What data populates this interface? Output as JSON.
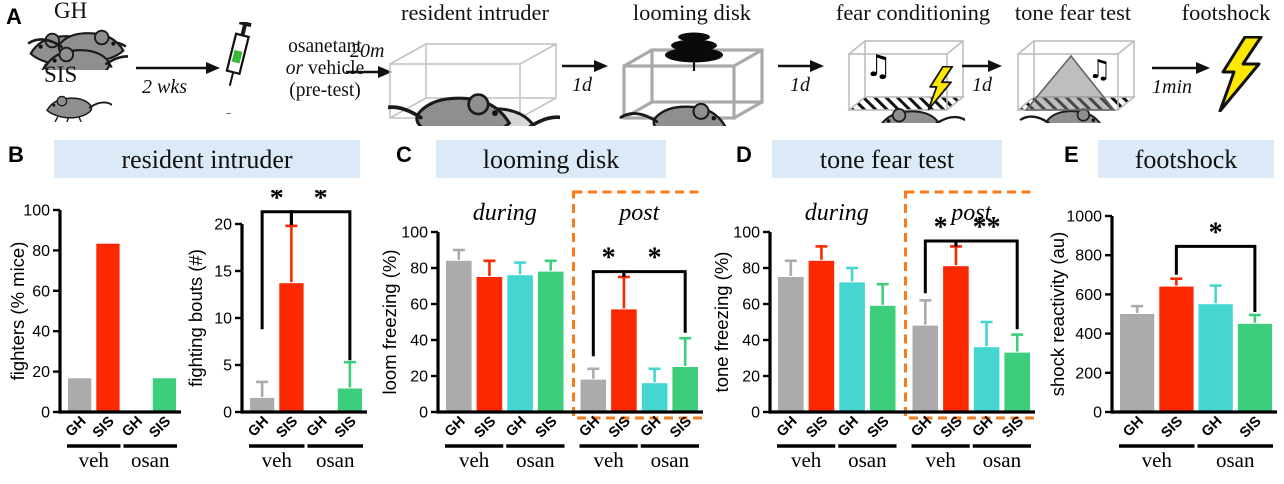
{
  "panel_a": {
    "label": "A",
    "gh": "GH",
    "sis": "SIS",
    "t_2wks": "2 wks",
    "t_20m": "20m",
    "t_1d": "1d",
    "t_1min": "1min",
    "inj1": "osanetant",
    "inj_or": "or",
    "inj2": " vehicle",
    "inj3": "(pre-test)",
    "s1": "resident intruder",
    "s2": "looming disk",
    "s3": "fear conditioning",
    "s4": "tone fear test",
    "s5": "footshock"
  },
  "panels": {
    "b": {
      "label": "B",
      "title": "resident intruder"
    },
    "c": {
      "label": "C",
      "title": "looming disk"
    },
    "d": {
      "label": "D",
      "title": "tone fear test"
    },
    "e": {
      "label": "E",
      "title": "footshock"
    }
  },
  "colors": {
    "gray": "#ABABAB",
    "red": "#FB2800",
    "cyan": "#45D6D2",
    "green": "#3DCE7D",
    "orange_dash": "#F97C1C",
    "header_bg": "#DCE9F6",
    "axis": "#000000"
  },
  "chart_data": [
    {
      "id": "fighters",
      "panel": "B",
      "type": "bar",
      "ylabel": "fighters (% mice)",
      "ylim": [
        0,
        100
      ],
      "yticks": [
        0,
        20,
        40,
        60,
        80,
        100
      ],
      "categories": [
        "GH",
        "SIS",
        "GH",
        "SIS"
      ],
      "group_labels": [
        {
          "label": "veh",
          "bars": [
            0,
            1
          ]
        },
        {
          "label": "osan",
          "bars": [
            2,
            3
          ]
        }
      ],
      "values": [
        16.7,
        83.3,
        0,
        16.7
      ],
      "errors": [
        0,
        0,
        0,
        0
      ],
      "bar_colors": [
        "gray",
        "red",
        "cyan",
        "green"
      ],
      "sections": [],
      "sig": []
    },
    {
      "id": "fighting-bouts",
      "panel": "B",
      "type": "bar",
      "ylabel": "fighting bouts (#)",
      "ylim": [
        0,
        20
      ],
      "yticks": [
        0,
        5,
        10,
        15,
        20
      ],
      "categories": [
        "GH",
        "SIS",
        "GH",
        "SIS"
      ],
      "group_labels": [
        {
          "label": "veh",
          "bars": [
            0,
            1
          ]
        },
        {
          "label": "osan",
          "bars": [
            2,
            3
          ]
        }
      ],
      "values": [
        1.5,
        13.7,
        0,
        2.5
      ],
      "errors": [
        1.7,
        6.1,
        0,
        2.8
      ],
      "bar_colors": [
        "gray",
        "red",
        "cyan",
        "green"
      ],
      "sections": [],
      "sig": [
        {
          "a": 0,
          "b": 1,
          "label": "*",
          "y": 21.3,
          "drop_a": 12.5,
          "drop_b": 1.4
        },
        {
          "a": 1,
          "b": 3,
          "label": "*",
          "y": 21.3,
          "drop_a": 1.4,
          "drop_b": 15.8
        }
      ]
    },
    {
      "id": "loom-freezing",
      "panel": "C",
      "type": "bar",
      "ylabel": "loom freezing (%)",
      "ylim": [
        0,
        100
      ],
      "yticks": [
        0,
        20,
        40,
        60,
        80,
        100
      ],
      "categories": [
        "GH",
        "SIS",
        "GH",
        "SIS",
        "GH",
        "SIS",
        "GH",
        "SIS"
      ],
      "group_labels": [
        {
          "label": "veh",
          "bars": [
            0,
            1
          ]
        },
        {
          "label": "osan",
          "bars": [
            2,
            3
          ]
        },
        {
          "label": "veh",
          "bars": [
            4,
            5
          ]
        },
        {
          "label": "osan",
          "bars": [
            6,
            7
          ]
        }
      ],
      "sections": [
        {
          "label": "during",
          "bars": [
            0,
            3
          ],
          "boxed": false
        },
        {
          "label": "post",
          "bars": [
            4,
            7
          ],
          "boxed": true
        }
      ],
      "values": [
        84,
        75,
        76,
        78,
        18,
        57,
        16,
        25
      ],
      "errors": [
        6,
        9,
        7,
        6,
        6,
        18,
        8,
        16
      ],
      "bar_colors": [
        "gray",
        "red",
        "cyan",
        "green",
        "gray",
        "red",
        "cyan",
        "green"
      ],
      "sig": [
        {
          "a": 4,
          "b": 5,
          "label": "*",
          "y": 78,
          "drop_a": 47,
          "drop_b": 3
        },
        {
          "a": 5,
          "b": 7,
          "label": "*",
          "y": 78,
          "drop_a": 3,
          "drop_b": 34
        }
      ]
    },
    {
      "id": "tone-freezing",
      "panel": "D",
      "type": "bar",
      "ylabel": "tone freezing (%)",
      "ylim": [
        0,
        100
      ],
      "yticks": [
        0,
        20,
        40,
        60,
        80,
        100
      ],
      "categories": [
        "GH",
        "SIS",
        "GH",
        "SIS",
        "GH",
        "SIS",
        "GH",
        "SIS"
      ],
      "group_labels": [
        {
          "label": "veh",
          "bars": [
            0,
            1
          ]
        },
        {
          "label": "osan",
          "bars": [
            2,
            3
          ]
        },
        {
          "label": "veh",
          "bars": [
            4,
            5
          ]
        },
        {
          "label": "osan",
          "bars": [
            6,
            7
          ]
        }
      ],
      "sections": [
        {
          "label": "during",
          "bars": [
            0,
            3
          ],
          "boxed": false
        },
        {
          "label": "post",
          "bars": [
            4,
            7
          ],
          "boxed": true
        }
      ],
      "values": [
        75,
        84,
        72,
        59,
        48,
        81,
        36,
        33
      ],
      "errors": [
        9,
        8,
        8,
        12,
        14,
        11,
        14,
        10
      ],
      "bar_colors": [
        "gray",
        "red",
        "cyan",
        "green",
        "gray",
        "red",
        "cyan",
        "green"
      ],
      "sig": [
        {
          "a": 4,
          "b": 5,
          "label": "*",
          "y": 95,
          "drop_a": 29,
          "drop_b": 3
        },
        {
          "a": 5,
          "b": 7,
          "label": "**",
          "y": 95,
          "drop_a": 3,
          "drop_b": 49
        }
      ]
    },
    {
      "id": "shock-reactivity",
      "panel": "E",
      "type": "bar",
      "ylabel": "shock reactivity (au)",
      "ylim": [
        0,
        1000
      ],
      "yticks": [
        0,
        200,
        400,
        600,
        800,
        1000
      ],
      "categories": [
        "GH",
        "SIS",
        "GH",
        "SIS"
      ],
      "group_labels": [
        {
          "label": "veh",
          "bars": [
            0,
            1
          ]
        },
        {
          "label": "osan",
          "bars": [
            2,
            3
          ]
        }
      ],
      "values": [
        500,
        640,
        550,
        450
      ],
      "errors": [
        40,
        40,
        95,
        45
      ],
      "bar_colors": [
        "gray",
        "red",
        "cyan",
        "green"
      ],
      "sections": [],
      "sig": [
        {
          "a": 1,
          "b": 3,
          "label": "*",
          "y": 845,
          "drop_a": 145,
          "drop_b": 335
        }
      ]
    }
  ]
}
